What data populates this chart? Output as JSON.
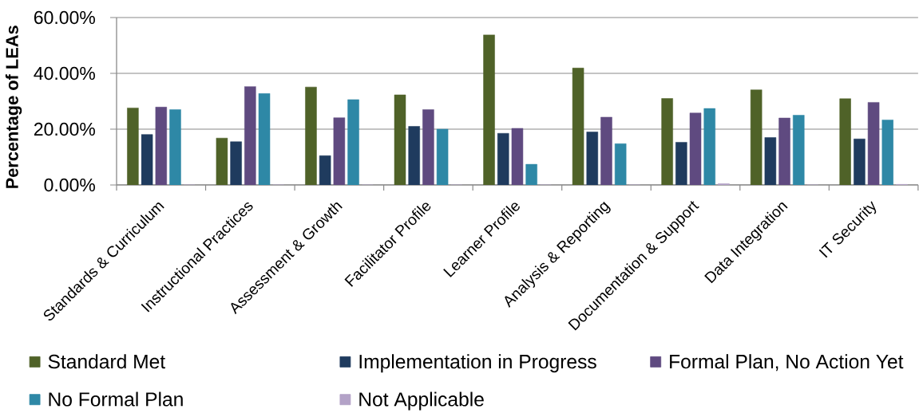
{
  "chart_data": {
    "type": "bar",
    "ylabel": "Percentage of LEAs",
    "categories": [
      "Standards & Curriculum",
      "Instructional Practices",
      "Assessment & Growth",
      "Facilitator Profile",
      "Learner Profile",
      "Analysis & Reporting",
      "Documentation & Support",
      "Data Integration",
      "IT Security"
    ],
    "series": [
      {
        "name": "Standard Met",
        "color": "#4f6228",
        "values": [
          27.6,
          16.8,
          35.1,
          32.3,
          53.8,
          41.9,
          31.0,
          34.1,
          30.9
        ]
      },
      {
        "name": "Implementation in Progress",
        "color": "#1f3b5e",
        "values": [
          18.1,
          15.5,
          10.5,
          21.0,
          18.5,
          19.0,
          15.3,
          17.0,
          16.5
        ]
      },
      {
        "name": "Formal Plan, No Action Yet",
        "color": "#5f4a80",
        "values": [
          27.9,
          35.3,
          24.1,
          27.0,
          20.3,
          24.3,
          25.8,
          24.0,
          29.6
        ]
      },
      {
        "name": "No Formal Plan",
        "color": "#2e88a6",
        "values": [
          27.0,
          32.8,
          30.6,
          20.0,
          7.4,
          14.8,
          27.4,
          25.0,
          23.3
        ]
      },
      {
        "name": "Not Applicable",
        "color": "#b3a2c7",
        "values": [
          0,
          0,
          0,
          0,
          0,
          0,
          0.5,
          0,
          0.2
        ]
      }
    ],
    "ylim": [
      0,
      60
    ],
    "yticks": [
      {
        "value": 0,
        "label": "0.00%"
      },
      {
        "value": 20,
        "label": "20.00%"
      },
      {
        "value": 40,
        "label": "40.00%"
      },
      {
        "value": 60,
        "label": "60.00%"
      }
    ],
    "grid": "y",
    "legend": "bottom"
  }
}
